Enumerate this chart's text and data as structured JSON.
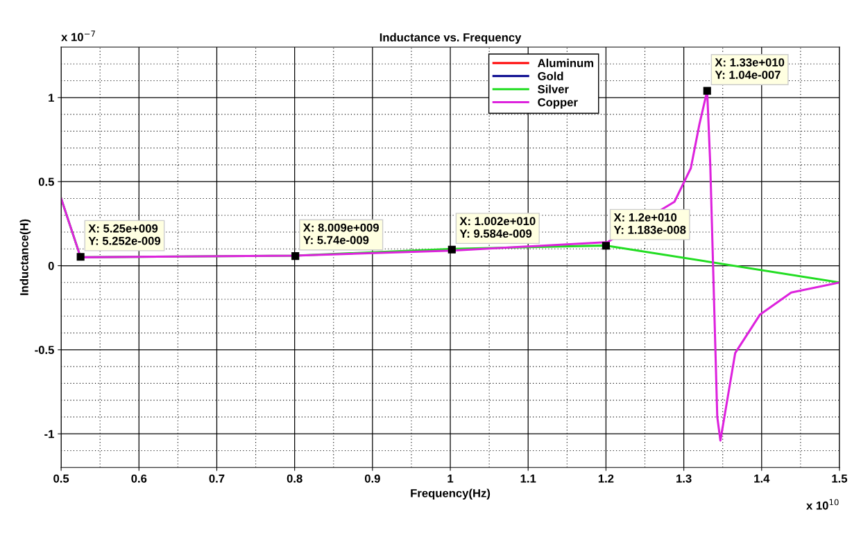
{
  "chart_data": {
    "type": "line",
    "title": "Inductance vs. Frequency",
    "xlabel": "Frequency(Hz)",
    "ylabel": "Inductance(H)",
    "xlim": [
      0.5,
      1.5
    ],
    "xticks": [
      0.5,
      0.6,
      0.7,
      0.8,
      0.9,
      1,
      1.1,
      1.2,
      1.3,
      1.4,
      1.5
    ],
    "ylim": [
      -1.2,
      1.3
    ],
    "yticks": [
      -1,
      -0.5,
      0,
      0.5,
      1
    ],
    "grid": true,
    "legend": "top",
    "line_style": "solid",
    "series": [
      {
        "name": "Aluminum",
        "color": "#ff0000"
      },
      {
        "name": "Gold",
        "color": "#00008b"
      },
      {
        "name": "Silver",
        "color": "#22dd22",
        "x": [
          0.5,
          0.525,
          0.8009,
          1.002,
          1.2,
          1.5
        ],
        "values": [
          0.4,
          0.05,
          0.06,
          0.1,
          0.12,
          -0.1
        ]
      },
      {
        "name": "Copper",
        "color": "#dd22dd",
        "x": [
          0.5,
          0.525,
          0.8009,
          1.002,
          1.202,
          1.288,
          1.309,
          1.32,
          1.33,
          1.334,
          1.343,
          1.347,
          1.366,
          1.398,
          1.438,
          1.5
        ],
        "values": [
          0.4,
          0.05,
          0.06,
          0.09,
          0.14,
          0.38,
          0.58,
          0.84,
          1.04,
          0.6,
          -0.9,
          -1.04,
          -0.52,
          -0.29,
          -0.16,
          -0.1
        ]
      }
    ],
    "annotations": [
      "x 10$^{−7}$",
      "x 10$^{10}$",
      {
        "text": "X: 5.25e+009\nY: 5.252e-009",
        "x": 0.525,
        "y": 0.05252
      },
      {
        "text": "X: 8.009e+009\nY: 5.74e-009",
        "x": 0.8009,
        "y": 0.0574
      },
      {
        "text": "X: 1.002e+010\nY: 9.584e-009",
        "x": 1.002,
        "y": 0.09584
      },
      {
        "text": "X: 1.2e+010\nY: 1.183e-008",
        "x": 1.2,
        "y": 0.1183
      },
      {
        "text": "X: 1.33e+010\nY: 1.04e-007",
        "x": 1.33,
        "y": 1.04
      }
    ]
  }
}
